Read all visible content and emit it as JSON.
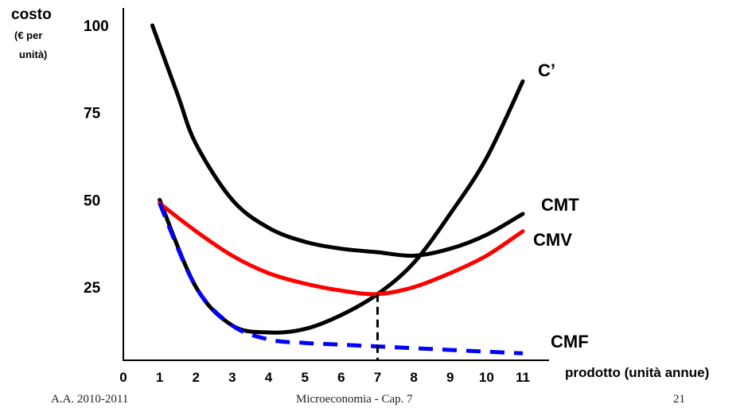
{
  "chart_data": {
    "type": "line",
    "ylabel_title": "costo",
    "ylabel_unit_line1": "(€  per",
    "ylabel_unit_line2": "unità)",
    "xlabel": "prodotto (unità annue)",
    "x_ticks": [
      "0",
      "1",
      "2",
      "3",
      "4",
      "5",
      "6",
      "7",
      "8",
      "9",
      "10",
      "11"
    ],
    "y_ticks": [
      "100",
      "75",
      "50",
      "25"
    ],
    "xlim": [
      0,
      11.2
    ],
    "ylim": [
      0,
      103
    ],
    "grid": false,
    "series": [
      {
        "name": "C’",
        "color": "#000000",
        "style": "solid",
        "x": [
          1,
          2,
          3,
          4,
          5,
          6,
          7,
          8,
          9,
          10,
          11
        ],
        "y": [
          50,
          25,
          14,
          12,
          13,
          17,
          23,
          32,
          46,
          62,
          84
        ]
      },
      {
        "name": "CMT",
        "color": "#000000",
        "style": "solid",
        "x": [
          0.8,
          1.5,
          2,
          3,
          4,
          5,
          6,
          7,
          8,
          9,
          10,
          11
        ],
        "y": [
          100,
          80,
          66,
          50,
          42,
          38,
          36,
          35,
          34,
          36,
          40,
          46
        ]
      },
      {
        "name": "CMV",
        "color": "#ff0000",
        "style": "solid",
        "x": [
          1,
          2,
          3,
          4,
          5,
          6,
          7,
          8,
          9,
          10,
          11
        ],
        "y": [
          49,
          41,
          34,
          29,
          26,
          24,
          23,
          25,
          29,
          34,
          41
        ]
      },
      {
        "name": "CMF",
        "color": "#0000ff",
        "style": "dashed",
        "x": [
          1,
          2,
          3,
          4,
          5,
          6,
          7,
          8,
          9,
          10,
          11
        ],
        "y": [
          49,
          25,
          14,
          10,
          9,
          8.5,
          8,
          7.5,
          7,
          6.5,
          6
        ]
      }
    ],
    "vertical_marker": {
      "x": 7,
      "y": 23,
      "style": "dashed",
      "color": "#000000"
    }
  },
  "footer": {
    "left": "A.A. 2010-2011",
    "center": "Microeconomia - Cap. 7",
    "right": "21"
  }
}
